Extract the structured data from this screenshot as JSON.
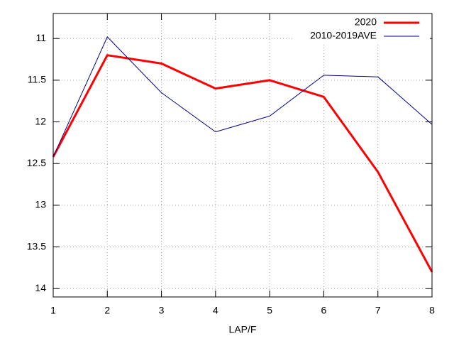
{
  "chart_data": {
    "type": "line",
    "x_label": "LAP/F",
    "x": [
      1,
      2,
      3,
      4,
      5,
      6,
      7,
      8
    ],
    "xlim": [
      1,
      8
    ],
    "xticks": [
      1,
      2,
      3,
      4,
      5,
      6,
      7,
      8
    ],
    "ylim": [
      10.7,
      14.1
    ],
    "y_reversed": true,
    "yticks": [
      11,
      11.5,
      12,
      12.5,
      13,
      13.5,
      14
    ],
    "grid": true,
    "legend": "top-right",
    "series": [
      {
        "name": "2020",
        "color": "#ff0000",
        "width": 3,
        "values": [
          12.42,
          11.2,
          11.3,
          11.6,
          11.5,
          11.7,
          12.6,
          13.8
        ]
      },
      {
        "name": "2010-2019AVE",
        "color": "#00008b",
        "width": 1,
        "values": [
          12.42,
          10.98,
          11.65,
          12.12,
          11.93,
          11.44,
          11.46,
          12.03
        ]
      }
    ]
  }
}
